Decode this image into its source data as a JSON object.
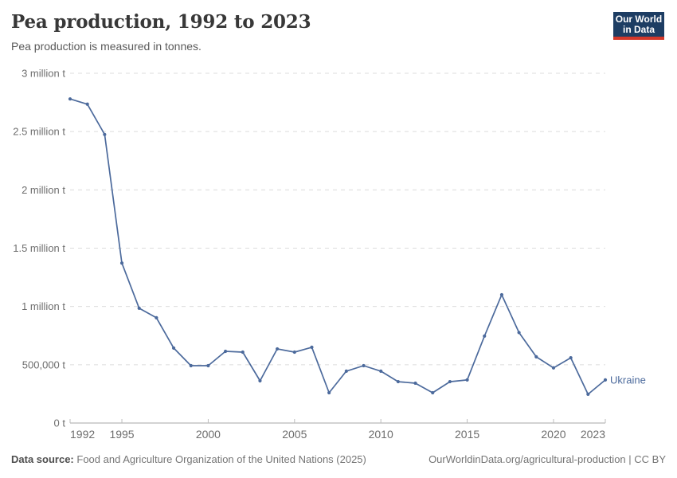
{
  "header": {
    "title": "Pea production, 1992 to 2023",
    "subtitle": "Pea production is measured in tonnes."
  },
  "logo": {
    "line1": "Our World",
    "line2": "in Data",
    "bg_color": "#1d3d63",
    "accent_color": "#d4382a"
  },
  "chart_data": {
    "type": "line",
    "title": "Pea production, 1992 to 2023",
    "unit": "tonnes",
    "xlim": [
      1992,
      2023
    ],
    "ylim": [
      0,
      3000000
    ],
    "grid": "horizontal-dashed",
    "legend_position": "end-of-line",
    "x_ticks": [
      1992,
      1995,
      2000,
      2005,
      2010,
      2015,
      2020,
      2023
    ],
    "y_ticks": [
      {
        "value": 0,
        "label": "0 t"
      },
      {
        "value": 500000,
        "label": "500,000 t"
      },
      {
        "value": 1000000,
        "label": "1 million t"
      },
      {
        "value": 1500000,
        "label": "1.5 million t"
      },
      {
        "value": 2000000,
        "label": "2 million t"
      },
      {
        "value": 2500000,
        "label": "2.5 million t"
      },
      {
        "value": 3000000,
        "label": "3 million t"
      }
    ],
    "series": [
      {
        "name": "Ukraine",
        "color": "#4c6a9c",
        "x": [
          1992,
          1993,
          1994,
          1995,
          1996,
          1997,
          1998,
          1999,
          2000,
          2001,
          2002,
          2003,
          2004,
          2005,
          2006,
          2007,
          2008,
          2009,
          2010,
          2011,
          2012,
          2013,
          2014,
          2015,
          2016,
          2017,
          2018,
          2019,
          2020,
          2021,
          2022,
          2023
        ],
        "values": [
          2780000,
          2735000,
          2475000,
          1372000,
          985000,
          903000,
          643000,
          492000,
          492000,
          615000,
          608000,
          362000,
          636000,
          608000,
          650000,
          260000,
          445000,
          492000,
          445000,
          355000,
          342000,
          260000,
          355000,
          370000,
          746000,
          1100000,
          776000,
          568000,
          473000,
          560000,
          247000,
          370000
        ]
      }
    ],
    "style": {
      "grid_color": "#dcdcdc",
      "axis_color": "#a7a7a7",
      "tick_color": "#bdbdbd",
      "label_color": "#6e6e6e"
    }
  },
  "footer": {
    "source_label": "Data source:",
    "source_text": "Food and Agriculture Organization of the United Nations (2025)",
    "credit": "OurWorldinData.org/agricultural-production | CC BY"
  }
}
